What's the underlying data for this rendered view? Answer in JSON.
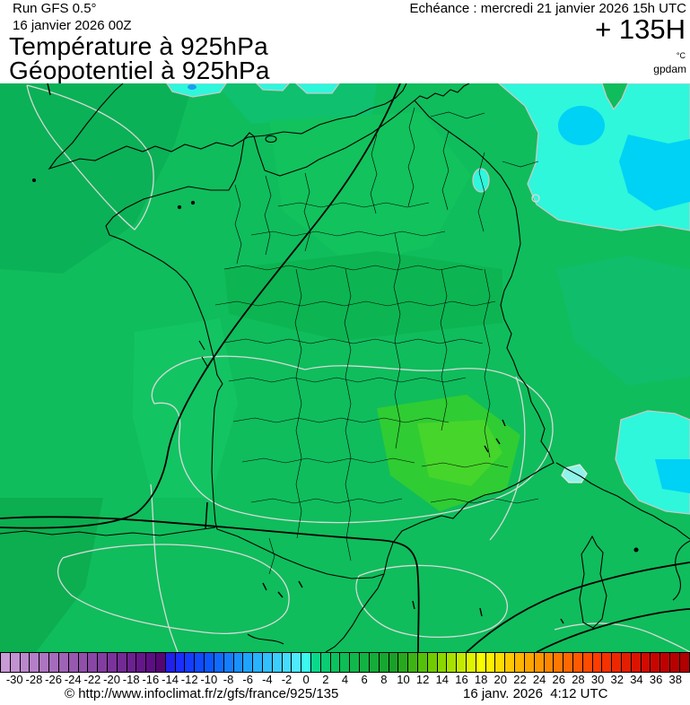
{
  "header": {
    "run": "Run GFS 0.5°",
    "init": "16 janvier 2026 00Z",
    "title_line1": "Température à 925hPa",
    "title_line2": "Géopotentiel à 925hPa",
    "echeance": "Echéance : mercredi 21 janvier 2026 15h UTC",
    "forecast_offset": "+ 135H",
    "unit_temperature": "°C",
    "unit_geopotential": "gpdam"
  },
  "map": {
    "region": "France",
    "colors": {
      "base_green": "#0FBD5C",
      "cold_cyan": "#2EF7DC",
      "colder_blue_cyan": "#00D2F5",
      "isoline_white": "#D9D9D9",
      "geopotential_contour": "#000000",
      "coastline": "#000000"
    }
  },
  "colorbar": {
    "min": -31,
    "max": 40,
    "labels": [
      "-30",
      "-28",
      "-26",
      "-24",
      "-22",
      "-20",
      "-18",
      "-16",
      "-14",
      "-12",
      "-10",
      "-8",
      "-6",
      "-4",
      "-2",
      "0",
      "2",
      "4",
      "6",
      "8",
      "10",
      "12",
      "14",
      "16",
      "18",
      "20",
      "22",
      "24",
      "26",
      "28",
      "30",
      "32",
      "34",
      "36",
      "38"
    ],
    "colors": [
      "#C99BD6",
      "#C292D1",
      "#BB88CB",
      "#B47FC6",
      "#AC75C0",
      "#A56CBB",
      "#9E63B5",
      "#9759B0",
      "#9050AA",
      "#8846A5",
      "#813D9F",
      "#7A339A",
      "#732A94",
      "#6B218F",
      "#641789",
      "#5D0E84",
      "#560575",
      "#2121EB",
      "#1A2EFF",
      "#143CFF",
      "#0F4AFF",
      "#0A58FF",
      "#0F6BFF",
      "#147EFF",
      "#1991FF",
      "#1EA4FF",
      "#28B2FF",
      "#32C0FF",
      "#3CCEFF",
      "#46DCFF",
      "#50EAFF",
      "#3CF8F0",
      "#0CD88C",
      "#0ACC72",
      "#0AC35F",
      "#0DBD55",
      "#10B84C",
      "#12B243",
      "#15AC3A",
      "#17A631",
      "#1AA028",
      "#27A81E",
      "#3DB414",
      "#55C00A",
      "#70CC00",
      "#8CD600",
      "#A8E000",
      "#C4EA00",
      "#E0F400",
      "#FAFD00",
      "#FFF000",
      "#FFDC00",
      "#FFC800",
      "#FFB400",
      "#FFA500",
      "#FF9600",
      "#FF8700",
      "#FF7800",
      "#FF6900",
      "#FF5A00",
      "#FF4B00",
      "#FF3C00",
      "#F63200",
      "#ED2800",
      "#E41E00",
      "#DB1400",
      "#D20A00",
      "#C90500",
      "#C00000",
      "#B80000",
      "#B00000"
    ]
  },
  "footer": {
    "copyright": "© http://www.infoclimat.fr/z/gfs/france/925/135",
    "generated": "16 janv. 2026  4:12 UTC"
  }
}
